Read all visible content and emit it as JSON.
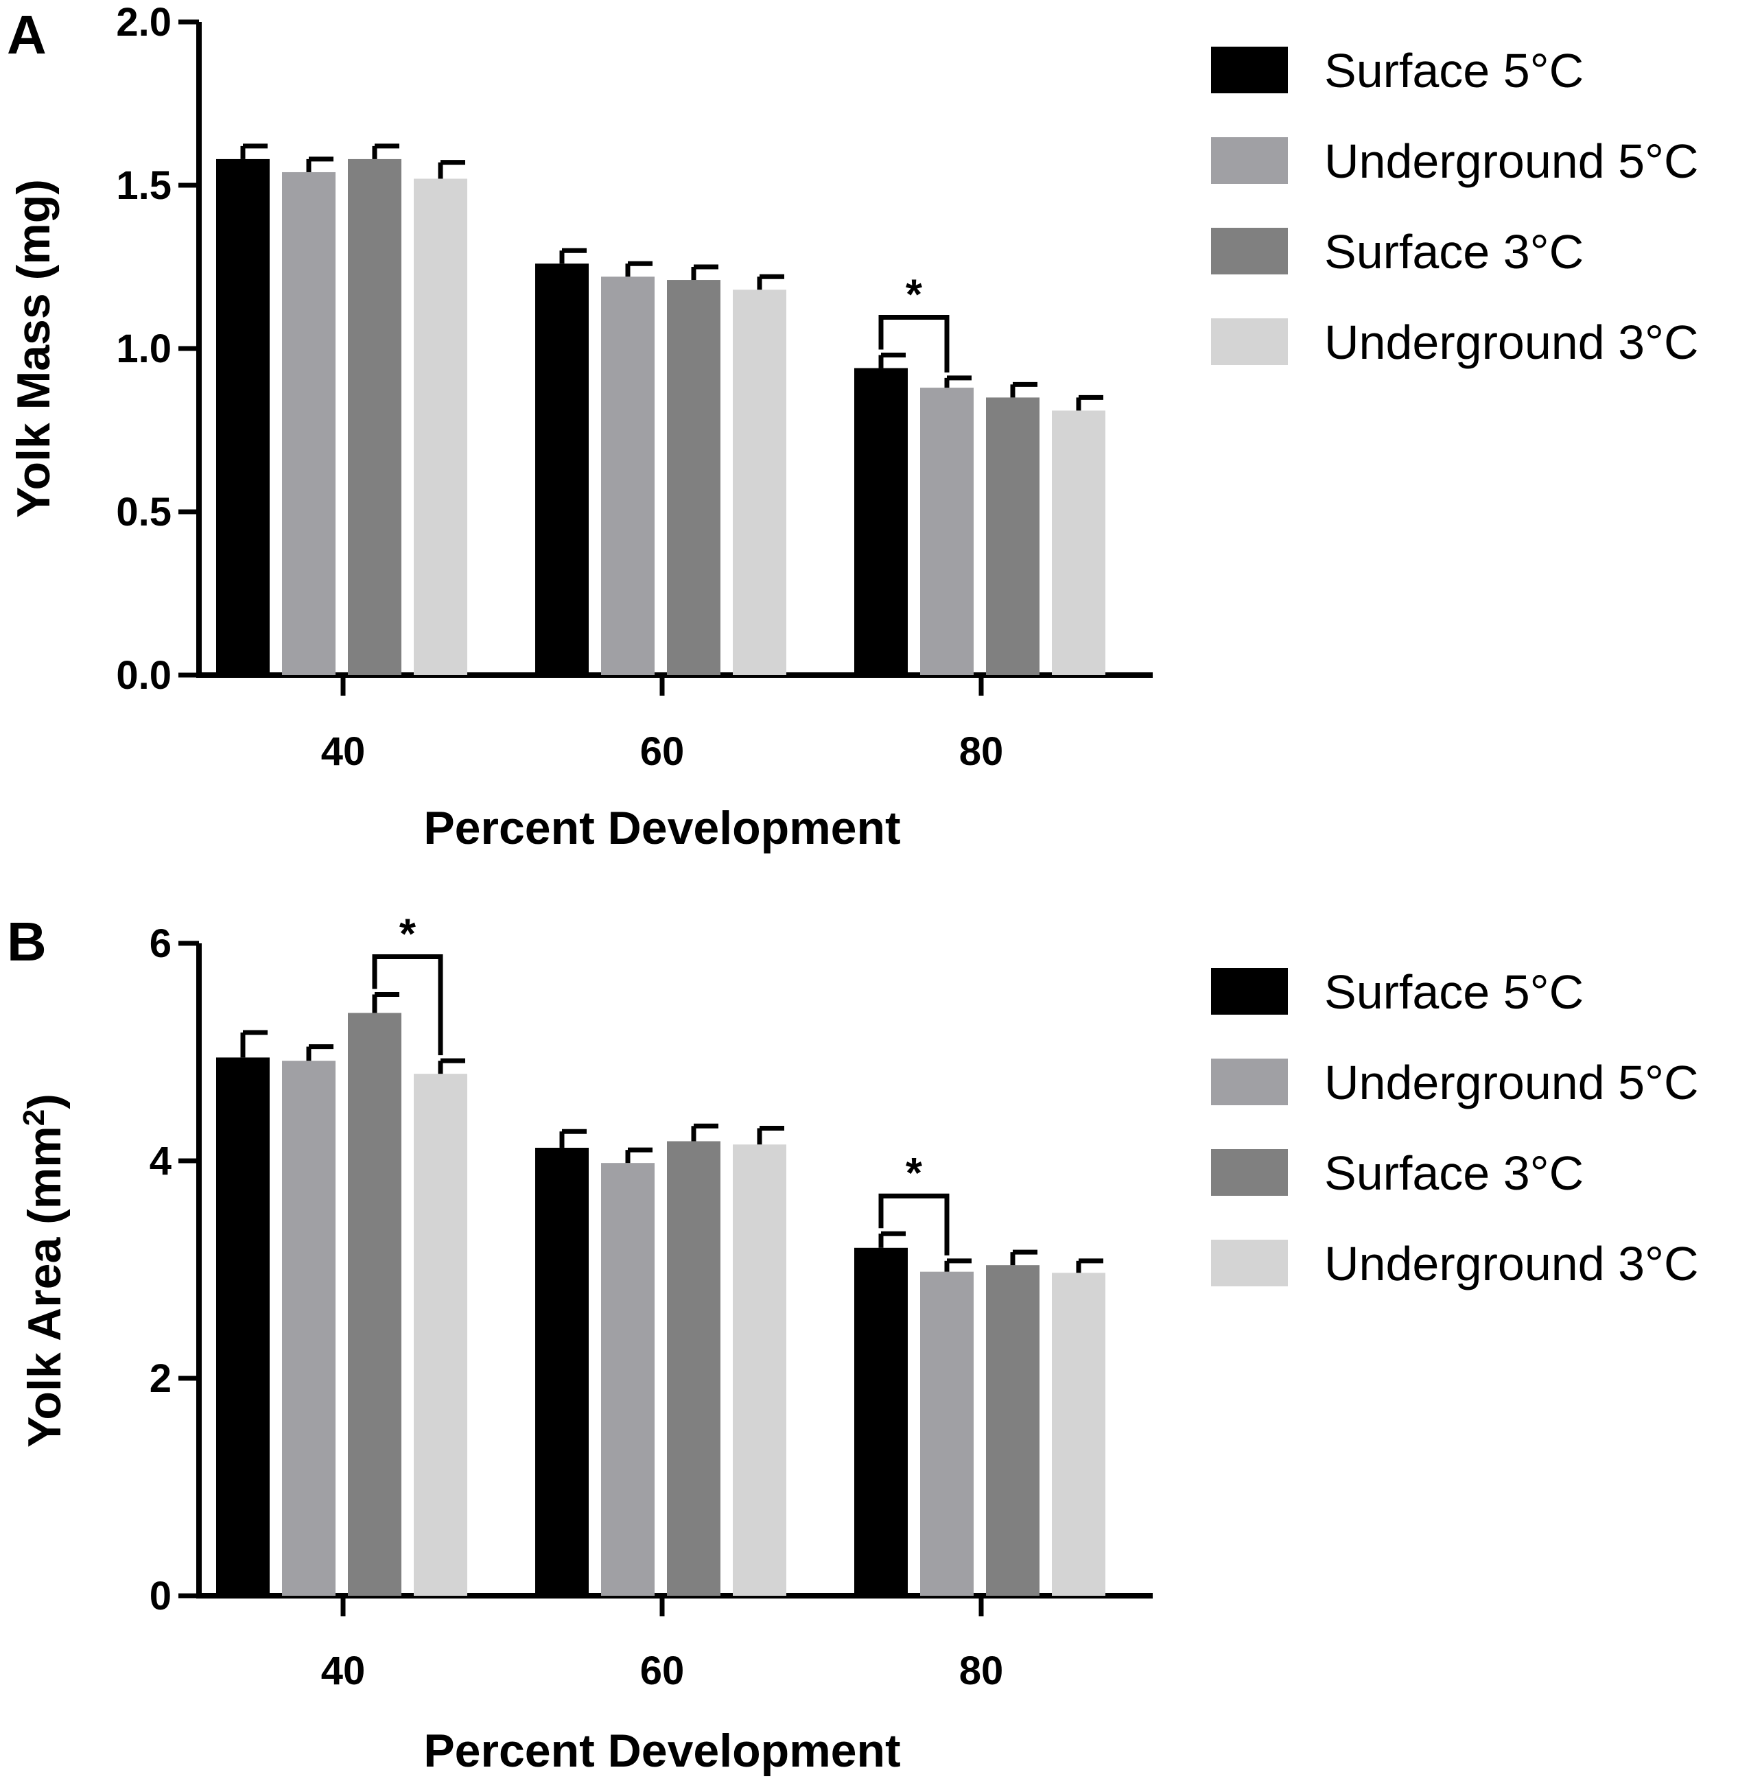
{
  "series_colors": {
    "Surface 5°C": "#000000",
    "Underground 5°C": "#a0a0a4",
    "Surface 3°C": "#808080",
    "Underground 3°C": "#d4d4d4"
  },
  "chart_data": [
    {
      "panel_label": "A",
      "type": "bar",
      "title": "",
      "xlabel": "Percent Development",
      "ylabel": "Yolk Mass (mg)",
      "ylabel_sup": "",
      "ylabel_tail": "",
      "ylim": [
        0,
        2.0
      ],
      "yticks": [
        "0.0",
        "0.5",
        "1.0",
        "1.5",
        "2.0"
      ],
      "categories": [
        "40",
        "60",
        "80"
      ],
      "legend": {
        "position": "right",
        "entries": [
          "Surface 5°C",
          "Underground 5°C",
          "Surface 3°C",
          "Underground 3°C"
        ]
      },
      "series": [
        {
          "name": "Surface 5°C",
          "values": [
            1.58,
            1.26,
            0.94
          ],
          "errors": [
            0.04,
            0.04,
            0.04
          ]
        },
        {
          "name": "Underground 5°C",
          "values": [
            1.54,
            1.22,
            0.88
          ],
          "errors": [
            0.04,
            0.04,
            0.03
          ]
        },
        {
          "name": "Surface 3°C",
          "values": [
            1.58,
            1.21,
            0.85
          ],
          "errors": [
            0.04,
            0.04,
            0.04
          ]
        },
        {
          "name": "Underground 3°C",
          "values": [
            1.52,
            1.18,
            0.81
          ],
          "errors": [
            0.05,
            0.04,
            0.04
          ]
        }
      ],
      "annotations": [
        {
          "text": "*",
          "category": 2,
          "from_series": 0,
          "to_series": 1
        }
      ]
    },
    {
      "panel_label": "B",
      "type": "bar",
      "title": "",
      "xlabel": "Percent Development",
      "ylabel": "Yolk Area (mm",
      "ylabel_sup": "2",
      "ylabel_tail": ")",
      "ylim": [
        0,
        6
      ],
      "yticks": [
        "0",
        "2",
        "4",
        "6"
      ],
      "categories": [
        "40",
        "60",
        "80"
      ],
      "legend": {
        "position": "right",
        "entries": [
          "Surface 5°C",
          "Underground 5°C",
          "Surface 3°C",
          "Underground 3°C"
        ]
      },
      "series": [
        {
          "name": "Surface 5°C",
          "values": [
            4.95,
            4.12,
            3.2
          ],
          "errors": [
            0.23,
            0.15,
            0.13
          ]
        },
        {
          "name": "Underground 5°C",
          "values": [
            4.92,
            3.98,
            2.98
          ],
          "errors": [
            0.13,
            0.12,
            0.1
          ]
        },
        {
          "name": "Surface 3°C",
          "values": [
            5.36,
            4.18,
            3.04
          ],
          "errors": [
            0.17,
            0.14,
            0.12
          ]
        },
        {
          "name": "Underground 3°C",
          "values": [
            4.8,
            4.15,
            2.97
          ],
          "errors": [
            0.12,
            0.15,
            0.11
          ]
        }
      ],
      "annotations": [
        {
          "text": "*",
          "category": 0,
          "from_series": 2,
          "to_series": 3
        },
        {
          "text": "*",
          "category": 2,
          "from_series": 0,
          "to_series": 1
        }
      ]
    }
  ]
}
